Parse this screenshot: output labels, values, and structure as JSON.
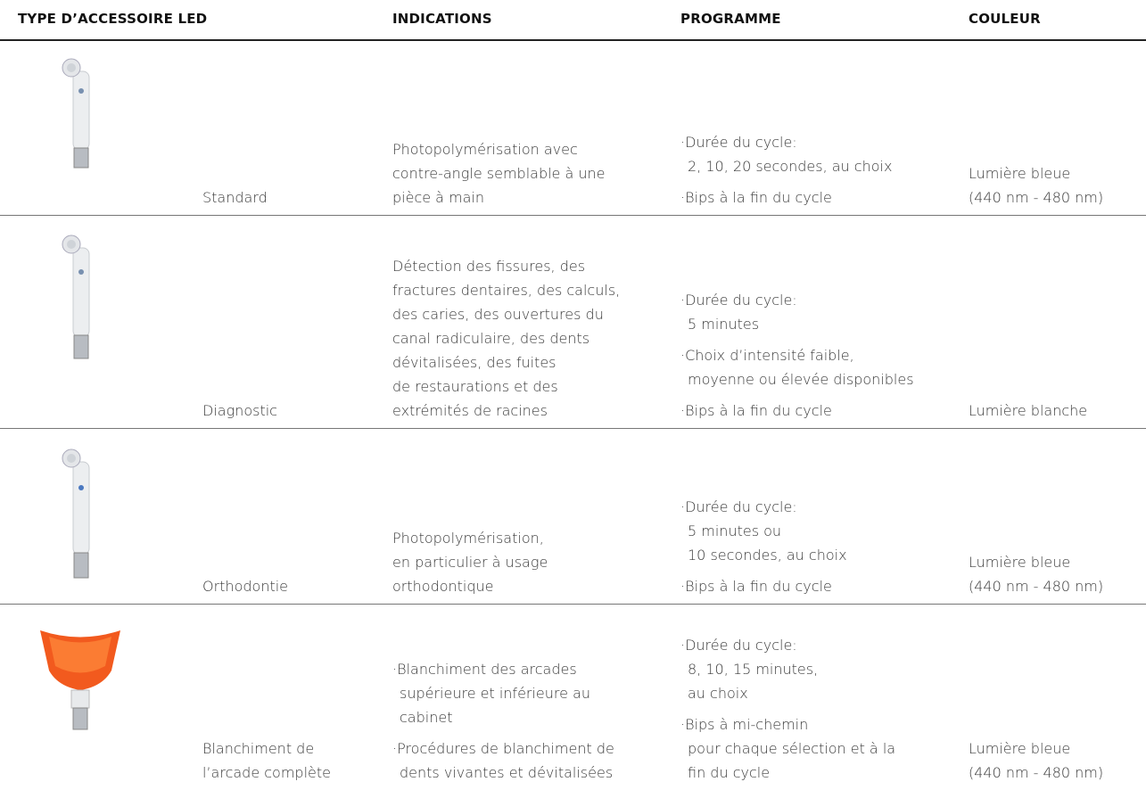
{
  "header": {
    "columns": [
      "TYPE D’ACCESSOIRE LED",
      "INDICATIONS",
      "PROGRAMME",
      "COULEUR"
    ]
  },
  "rows": [
    {
      "name": [
        "Standard"
      ],
      "indications": [
        [
          "Photopolymérisation avec",
          "contre-angle semblable à une",
          "pièce à main"
        ]
      ],
      "programme": [
        [
          "·Durée du cycle:",
          "2, 10, 20 secondes, au choix"
        ],
        [
          "·Bips à la fin du cycle"
        ]
      ],
      "couleur": [
        "Lumière bleue",
        "(440 nm - 480 nm)"
      ]
    },
    {
      "name": [
        "Diagnostic"
      ],
      "indications": [
        [
          "Détection des fissures, des",
          "fractures dentaires, des calculs,",
          "des caries, des ouvertures du",
          "canal radiculaire, des dents",
          "dévitalisées, des fuites",
          "de restaurations et des",
          "extrémités de racines"
        ]
      ],
      "programme": [
        [
          "·Durée du cycle:",
          "5 minutes"
        ],
        [
          "·Choix d’intensité faible,",
          "moyenne ou élevée disponibles"
        ],
        [
          "·Bips à la fin du cycle"
        ]
      ],
      "couleur": [
        "Lumière blanche"
      ]
    },
    {
      "name": [
        "Orthodontie"
      ],
      "indications": [
        [
          "Photopolymérisation,",
          "en particulier à usage",
          "orthodontique"
        ]
      ],
      "programme": [
        [
          "·Durée du cycle:",
          "5 minutes ou",
          "10 secondes, au choix"
        ],
        [
          "·Bips à la fin du cycle"
        ]
      ],
      "couleur": [
        "Lumière bleue",
        "(440 nm - 480 nm)"
      ]
    },
    {
      "name": [
        "Blanchiment de",
        "l’arcade complète"
      ],
      "indications": [
        [
          "·Blanchiment des arcades",
          "supérieure et inférieure au",
          "cabinet"
        ],
        [
          "·Procédures de blanchiment de",
          "dents vivantes et dévitalisées"
        ]
      ],
      "programme": [
        [
          "·Durée du cycle:",
          "8, 10, 15 minutes,",
          "au choix"
        ],
        [
          "·Bips à mi-chemin",
          "pour chaque sélection et à la",
          "fin du cycle"
        ]
      ],
      "couleur": [
        "Lumière bleue",
        "(440 nm - 480 nm)"
      ]
    }
  ]
}
